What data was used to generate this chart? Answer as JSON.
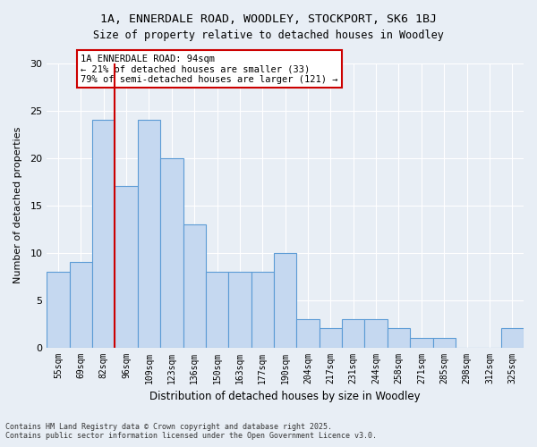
{
  "title1": "1A, ENNERDALE ROAD, WOODLEY, STOCKPORT, SK6 1BJ",
  "title2": "Size of property relative to detached houses in Woodley",
  "xlabel": "Distribution of detached houses by size in Woodley",
  "ylabel": "Number of detached properties",
  "bins": [
    "55sqm",
    "69sqm",
    "82sqm",
    "96sqm",
    "109sqm",
    "123sqm",
    "136sqm",
    "150sqm",
    "163sqm",
    "177sqm",
    "190sqm",
    "204sqm",
    "217sqm",
    "231sqm",
    "244sqm",
    "258sqm",
    "271sqm",
    "285sqm",
    "298sqm",
    "312sqm",
    "325sqm"
  ],
  "values": [
    8,
    9,
    24,
    17,
    24,
    20,
    13,
    8,
    8,
    8,
    10,
    3,
    2,
    3,
    3,
    2,
    1,
    1,
    0,
    0,
    2
  ],
  "bar_color": "#c5d8f0",
  "bar_edge_color": "#5b9bd5",
  "vline_x_index": 3.0,
  "vline_color": "#cc0000",
  "annotation_title": "1A ENNERDALE ROAD: 94sqm",
  "annotation_line1": "← 21% of detached houses are smaller (33)",
  "annotation_line2": "79% of semi-detached houses are larger (121) →",
  "annotation_box_color": "#ffffff",
  "annotation_box_edge": "#cc0000",
  "ylim": [
    0,
    30
  ],
  "yticks": [
    0,
    5,
    10,
    15,
    20,
    25,
    30
  ],
  "background_color": "#e8eef5",
  "plot_bg_color": "#e8eef5",
  "footer1": "Contains HM Land Registry data © Crown copyright and database right 2025.",
  "footer2": "Contains public sector information licensed under the Open Government Licence v3.0."
}
